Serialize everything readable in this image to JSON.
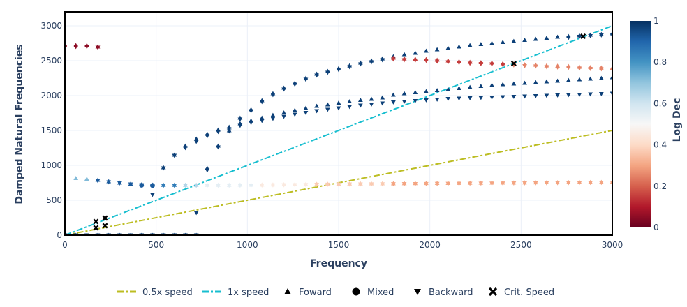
{
  "chart_data": {
    "type": "scatter",
    "xlabel": "Frequency",
    "ylabel": "Damped Natural Frequencies",
    "xlim": [
      0,
      3000
    ],
    "ylim": [
      0,
      3200
    ],
    "x_ticks": [
      0,
      500,
      1000,
      1500,
      2000,
      2500,
      3000
    ],
    "y_ticks": [
      0,
      500,
      1000,
      1500,
      2000,
      2500,
      3000
    ],
    "grid": true,
    "colorbar": {
      "title": "Log Dec",
      "range": [
        0,
        1
      ],
      "ticks": [
        0,
        0.2,
        0.4,
        0.6,
        0.8,
        1
      ],
      "colors": [
        "#67001f",
        "#b2182b",
        "#d6604d",
        "#f4a582",
        "#fddbc7",
        "#f7f7f7",
        "#d1e5f0",
        "#92c5de",
        "#4393c3",
        "#2166ac",
        "#053061"
      ]
    },
    "legend": {
      "placement": "bottom",
      "items": [
        {
          "label": "0.5x speed",
          "kind": "line",
          "color": "#bcbd22"
        },
        {
          "label": "1x speed",
          "kind": "line",
          "color": "#17becf"
        },
        {
          "label": "Foward",
          "kind": "triangle-up"
        },
        {
          "label": "Mixed",
          "kind": "circle"
        },
        {
          "label": "Backward",
          "kind": "triangle-down"
        },
        {
          "label": "Crit. Speed",
          "kind": "x"
        }
      ]
    },
    "lines": [
      {
        "name": "0.5x speed",
        "color": "#bcbd22",
        "x": [
          0,
          3000
        ],
        "y": [
          0,
          1500
        ]
      },
      {
        "name": "1x speed",
        "color": "#17becf",
        "x": [
          0,
          3000
        ],
        "y": [
          0,
          3000
        ]
      }
    ],
    "series": [
      {
        "marker": "triangle-up",
        "logdec": 0.05,
        "x": [
          0,
          60,
          120,
          180
        ],
        "y": [
          2720,
          2720,
          2720,
          2700
        ]
      },
      {
        "marker": "triangle-down",
        "logdec": 0.05,
        "x": [
          0,
          60,
          120,
          180
        ],
        "y": [
          2700,
          2700,
          2700,
          2690
        ]
      },
      {
        "marker": "triangle-up",
        "logdec": 0.97,
        "x": [
          0,
          60,
          120,
          180,
          240,
          300,
          360,
          420,
          480,
          540,
          600,
          660,
          720
        ],
        "y": [
          0,
          0,
          0,
          0,
          0,
          0,
          0,
          0,
          0,
          0,
          0,
          0,
          0
        ]
      },
      {
        "marker": "triangle-down",
        "logdec": 0.97,
        "x": [
          0,
          60,
          120,
          180,
          240,
          300,
          360,
          420,
          480,
          540,
          600,
          660,
          720
        ],
        "y": [
          0,
          0,
          0,
          0,
          0,
          0,
          0,
          0,
          0,
          0,
          0,
          0,
          0
        ]
      },
      {
        "marker": "triangle-up",
        "logdec": 0.72,
        "x": [
          60,
          120
        ],
        "y": [
          815,
          805
        ]
      },
      {
        "marker": "triangle-up",
        "logdec": 0.92,
        "x": [
          180,
          240,
          300,
          360,
          420,
          480
        ],
        "y": [
          790,
          770,
          750,
          735,
          725,
          720
        ]
      },
      {
        "marker": "triangle-down",
        "logdec": 0.92,
        "x": [
          180,
          240,
          300,
          360,
          420,
          480
        ],
        "y": [
          780,
          760,
          745,
          730,
          718,
          712
        ]
      },
      {
        "marker": "circle",
        "logdec": 0.92,
        "x": [
          420,
          480
        ],
        "y": [
          715,
          712
        ]
      },
      {
        "marker": "triangle-up",
        "logdec": 0.85,
        "x": [
          540,
          600
        ],
        "y": [
          718,
          718
        ]
      },
      {
        "marker": "triangle-down",
        "logdec": 0.85,
        "x": [
          540,
          600
        ],
        "y": [
          710,
          710
        ]
      },
      {
        "marker": "triangle-up",
        "logdec": 0.65,
        "x": [
          660,
          720
        ],
        "y": [
          718,
          718
        ]
      },
      {
        "marker": "triangle-down",
        "logdec": 0.65,
        "x": [
          660,
          720
        ],
        "y": [
          710,
          710
        ]
      },
      {
        "marker": "triangle-up",
        "logdec": 0.55,
        "x": [
          780,
          840,
          900,
          960,
          1020
        ],
        "y": [
          718,
          718,
          718,
          720,
          720
        ]
      },
      {
        "marker": "triangle-down",
        "logdec": 0.55,
        "x": [
          780,
          840,
          900,
          960,
          1020
        ],
        "y": [
          710,
          710,
          710,
          712,
          712
        ]
      },
      {
        "marker": "triangle-up",
        "logdec": 0.45,
        "x": [
          1080,
          1140,
          1200,
          1260,
          1320
        ],
        "y": [
          722,
          724,
          726,
          728,
          730
        ]
      },
      {
        "marker": "triangle-down",
        "logdec": 0.45,
        "x": [
          1080,
          1140,
          1200,
          1260,
          1320
        ],
        "y": [
          714,
          716,
          718,
          720,
          722
        ]
      },
      {
        "marker": "triangle-up",
        "logdec": 0.37,
        "x": [
          1380,
          1440,
          1500,
          1560,
          1620,
          1680,
          1740
        ],
        "y": [
          732,
          734,
          736,
          737,
          738,
          739,
          740
        ]
      },
      {
        "marker": "triangle-down",
        "logdec": 0.37,
        "x": [
          1380,
          1440,
          1500,
          1560,
          1620,
          1680,
          1740
        ],
        "y": [
          724,
          726,
          728,
          729,
          730,
          731,
          732
        ]
      },
      {
        "marker": "triangle-up",
        "logdec": 0.3,
        "x": [
          1800,
          1860,
          1920,
          1980,
          2040,
          2100,
          2160,
          2220,
          2280,
          2340,
          2400,
          2460,
          2520,
          2580,
          2640,
          2700,
          2760,
          2820,
          2880,
          2940,
          3000
        ],
        "y": [
          741,
          742,
          743,
          744,
          745,
          746,
          747,
          748,
          749,
          750,
          751,
          752,
          753,
          754,
          755,
          756,
          757,
          758,
          759,
          760,
          762
        ]
      },
      {
        "marker": "triangle-down",
        "logdec": 0.3,
        "x": [
          1800,
          1860,
          1920,
          1980,
          2040,
          2100,
          2160,
          2220,
          2280,
          2340,
          2400,
          2460,
          2520,
          2580,
          2640,
          2700,
          2760,
          2820,
          2880,
          2940,
          3000
        ],
        "y": [
          733,
          734,
          735,
          736,
          737,
          738,
          739,
          740,
          741,
          742,
          743,
          744,
          745,
          746,
          747,
          748,
          749,
          750,
          751,
          752,
          754
        ]
      },
      {
        "marker": "triangle-down",
        "logdec": 0.97,
        "x": [
          480,
          720
        ],
        "y": [
          580,
          320
        ]
      },
      {
        "marker": "triangle-up",
        "logdec": 0.97,
        "x": [
          540,
          600,
          660,
          720,
          780,
          840,
          900,
          960,
          1020,
          1080,
          1140,
          1200,
          1260,
          1320,
          1380,
          1440,
          1500,
          1560,
          1620,
          1680,
          1740
        ],
        "y": [
          970,
          1150,
          1280,
          1380,
          1450,
          1510,
          1550,
          1600,
          1640,
          1680,
          1720,
          1755,
          1790,
          1820,
          1850,
          1870,
          1895,
          1915,
          1935,
          1950,
          1970
        ]
      },
      {
        "marker": "triangle-down",
        "logdec": 0.97,
        "x": [
          540,
          600,
          660,
          720,
          780,
          840,
          900,
          960,
          1020,
          1080,
          1140,
          1200,
          1260,
          1320,
          1380,
          1440,
          1500,
          1560,
          1620,
          1680,
          1740
        ],
        "y": [
          960,
          1140,
          1250,
          1340,
          1420,
          1480,
          1520,
          1570,
          1610,
          1640,
          1670,
          1700,
          1730,
          1755,
          1780,
          1800,
          1820,
          1840,
          1860,
          1875,
          1890
        ]
      },
      {
        "marker": "triangle-up",
        "logdec": 0.97,
        "x": [
          780,
          840,
          900,
          960,
          1020,
          1080,
          1140,
          1200,
          1260,
          1320,
          1380,
          1440,
          1500,
          1560,
          1620,
          1680,
          1740
        ],
        "y": [
          960,
          1280,
          1500,
          1680,
          1800,
          1930,
          2030,
          2110,
          2180,
          2250,
          2310,
          2350,
          2390,
          2430,
          2470,
          2500,
          2530
        ]
      },
      {
        "marker": "triangle-down",
        "logdec": 0.97,
        "x": [
          780,
          840,
          900,
          960,
          1020,
          1080,
          1140,
          1200,
          1260,
          1320,
          1380,
          1440,
          1500,
          1560,
          1620,
          1680,
          1740
        ],
        "y": [
          930,
          1260,
          1490,
          1660,
          1780,
          1910,
          2010,
          2090,
          2160,
          2230,
          2290,
          2330,
          2370,
          2410,
          2450,
          2480,
          2510
        ]
      },
      {
        "marker": "triangle-up",
        "logdec": 0.97,
        "x": [
          1800,
          1860,
          1920,
          1980,
          2040,
          2100,
          2160,
          2220,
          2280,
          2340,
          2400,
          2460,
          2520,
          2580,
          2640,
          2700,
          2760,
          2820,
          2880,
          2940,
          3000
        ],
        "y": [
          2560,
          2590,
          2610,
          2640,
          2660,
          2680,
          2700,
          2720,
          2735,
          2750,
          2765,
          2780,
          2795,
          2810,
          2825,
          2840,
          2850,
          2860,
          2870,
          2880,
          2890
        ]
      },
      {
        "marker": "triangle-down",
        "logdec": 0.97,
        "x": [
          2760,
          2820,
          2880,
          2940,
          3000
        ],
        "y": [
          2830,
          2845,
          2855,
          2865,
          2870
        ]
      },
      {
        "marker": "triangle-up",
        "logdec": 0.15,
        "x": [
          1800,
          1860,
          1920,
          1980,
          2040,
          2100,
          2160,
          2220,
          2280,
          2340,
          2400
        ],
        "y": [
          2540,
          2530,
          2525,
          2520,
          2510,
          2500,
          2490,
          2480,
          2475,
          2470,
          2460
        ]
      },
      {
        "marker": "triangle-down",
        "logdec": 0.15,
        "x": [
          1800,
          1860,
          1920,
          1980,
          2040,
          2100,
          2160,
          2220,
          2280,
          2340,
          2400
        ],
        "y": [
          2520,
          2510,
          2505,
          2500,
          2490,
          2480,
          2470,
          2460,
          2455,
          2450,
          2440
        ]
      },
      {
        "marker": "triangle-up",
        "logdec": 0.25,
        "x": [
          2460,
          2520,
          2580,
          2640,
          2700,
          2760,
          2820,
          2880,
          2940,
          3000
        ],
        "y": [
          2455,
          2445,
          2440,
          2430,
          2425,
          2420,
          2410,
          2405,
          2400,
          2395
        ]
      },
      {
        "marker": "triangle-down",
        "logdec": 0.25,
        "x": [
          2460,
          2520,
          2580,
          2640,
          2700,
          2760,
          2820,
          2880,
          2940,
          3000
        ],
        "y": [
          2435,
          2425,
          2420,
          2410,
          2405,
          2400,
          2390,
          2385,
          2380,
          2375
        ]
      },
      {
        "marker": "triangle-up",
        "logdec": 0.97,
        "x": [
          1800,
          1860,
          1920,
          1980,
          2040,
          2100,
          2160,
          2220,
          2280,
          2340,
          2400,
          2460,
          2520,
          2580,
          2640,
          2700,
          2760,
          2820,
          2880,
          2940,
          3000
        ],
        "y": [
          2010,
          2030,
          2045,
          2060,
          2075,
          2090,
          2105,
          2120,
          2135,
          2150,
          2160,
          2170,
          2180,
          2190,
          2200,
          2210,
          2220,
          2230,
          2240,
          2250,
          2260
        ]
      },
      {
        "marker": "triangle-down",
        "logdec": 0.97,
        "x": [
          1800,
          1860,
          1920,
          1980,
          2040,
          2100,
          2160,
          2220,
          2280,
          2340,
          2400,
          2460,
          2520,
          2580,
          2640,
          2700,
          2760,
          2820,
          2880,
          2940,
          3000
        ],
        "y": [
          1905,
          1915,
          1925,
          1935,
          1945,
          1955,
          1960,
          1965,
          1970,
          1975,
          1980,
          1985,
          1990,
          1995,
          2000,
          2005,
          2010,
          2015,
          2020,
          2025,
          2030
        ]
      },
      {
        "marker": "x",
        "logdec": -1,
        "x": [
          170,
          170,
          220,
          220,
          2460,
          2840
        ],
        "y": [
          105,
          195,
          135,
          245,
          2460,
          2850
        ]
      }
    ]
  }
}
